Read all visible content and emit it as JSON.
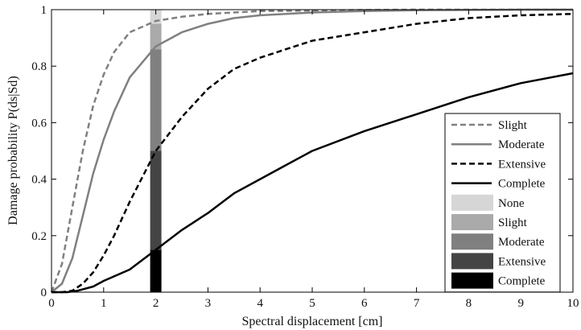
{
  "chart_data": {
    "type": "line",
    "xlabel": "Spectral displacement [cm]",
    "ylabel": "Damage probability P(ds|Sd)",
    "xlim": [
      0,
      10
    ],
    "ylim": [
      0,
      1
    ],
    "x_ticks": [
      "0",
      "1",
      "2",
      "3",
      "4",
      "5",
      "6",
      "7",
      "8",
      "9",
      "10"
    ],
    "y_ticks": [
      "0",
      "0.2",
      "0.4",
      "0.6",
      "0.8",
      "1"
    ],
    "grid": false,
    "legend_position": "right",
    "series": [
      {
        "name": "Slight",
        "style": "dashed",
        "color": "#808080",
        "x": [
          0,
          0.2,
          0.4,
          0.6,
          0.8,
          1.0,
          1.2,
          1.5,
          2.0,
          2.5,
          3.0,
          3.5,
          4.0,
          5.0,
          6.0,
          7.0,
          8.0,
          9.0,
          10.0
        ],
        "values": [
          0,
          0.1,
          0.3,
          0.5,
          0.66,
          0.77,
          0.85,
          0.92,
          0.96,
          0.975,
          0.985,
          0.99,
          0.995,
          0.997,
          0.999,
          1.0,
          1.0,
          1.0,
          1.0
        ]
      },
      {
        "name": "Moderate",
        "style": "solid",
        "color": "#808080",
        "x": [
          0,
          0.2,
          0.4,
          0.6,
          0.8,
          1.0,
          1.2,
          1.5,
          2.0,
          2.5,
          3.0,
          3.5,
          4.0,
          5.0,
          6.0,
          7.0,
          8.0,
          9.0,
          10.0
        ],
        "values": [
          0,
          0.03,
          0.12,
          0.27,
          0.42,
          0.54,
          0.64,
          0.76,
          0.87,
          0.92,
          0.95,
          0.97,
          0.98,
          0.99,
          0.995,
          0.998,
          0.999,
          1.0,
          1.0
        ]
      },
      {
        "name": "Extensive",
        "style": "dashed",
        "color": "#000000",
        "x": [
          0,
          0.2,
          0.4,
          0.6,
          0.8,
          1.0,
          1.2,
          1.5,
          2.0,
          2.5,
          3.0,
          3.5,
          4.0,
          4.5,
          5.0,
          6.0,
          7.0,
          8.0,
          9.0,
          10.0
        ],
        "values": [
          0,
          0,
          0.005,
          0.03,
          0.07,
          0.13,
          0.2,
          0.32,
          0.5,
          0.62,
          0.72,
          0.79,
          0.83,
          0.86,
          0.89,
          0.92,
          0.95,
          0.97,
          0.98,
          0.985
        ]
      },
      {
        "name": "Complete",
        "style": "solid",
        "color": "#000000",
        "x": [
          0,
          0.3,
          0.5,
          0.8,
          1.0,
          1.5,
          2.0,
          2.5,
          3.0,
          3.5,
          4.0,
          4.5,
          5.0,
          6.0,
          7.0,
          8.0,
          9.0,
          10.0
        ],
        "values": [
          0,
          0,
          0.005,
          0.02,
          0.04,
          0.08,
          0.15,
          0.22,
          0.28,
          0.35,
          0.4,
          0.45,
          0.5,
          0.57,
          0.63,
          0.69,
          0.74,
          0.775
        ]
      }
    ],
    "stacked_bar": {
      "x": 2.0,
      "segments": [
        {
          "name": "Complete",
          "from": 0,
          "to": 0.15,
          "color": "#000000"
        },
        {
          "name": "Extensive",
          "from": 0.15,
          "to": 0.5,
          "color": "#444444"
        },
        {
          "name": "Moderate",
          "from": 0.5,
          "to": 0.86,
          "color": "#808080"
        },
        {
          "name": "Slight",
          "from": 0.86,
          "to": 0.95,
          "color": "#aaaaaa"
        },
        {
          "name": "None",
          "from": 0.95,
          "to": 1.0,
          "color": "#d6d6d6"
        }
      ]
    },
    "legend": [
      {
        "label": "Slight",
        "kind": "line",
        "style": "dashed",
        "color": "#808080"
      },
      {
        "label": "Moderate",
        "kind": "line",
        "style": "solid",
        "color": "#808080"
      },
      {
        "label": "Extensive",
        "kind": "line",
        "style": "dashed",
        "color": "#000000"
      },
      {
        "label": "Complete",
        "kind": "line",
        "style": "solid",
        "color": "#000000"
      },
      {
        "label": "None",
        "kind": "patch",
        "color": "#d6d6d6"
      },
      {
        "label": "Slight",
        "kind": "patch",
        "color": "#aaaaaa"
      },
      {
        "label": "Moderate",
        "kind": "patch",
        "color": "#808080"
      },
      {
        "label": "Extensive",
        "kind": "patch",
        "color": "#444444"
      },
      {
        "label": "Complete",
        "kind": "patch",
        "color": "#000000"
      }
    ]
  }
}
